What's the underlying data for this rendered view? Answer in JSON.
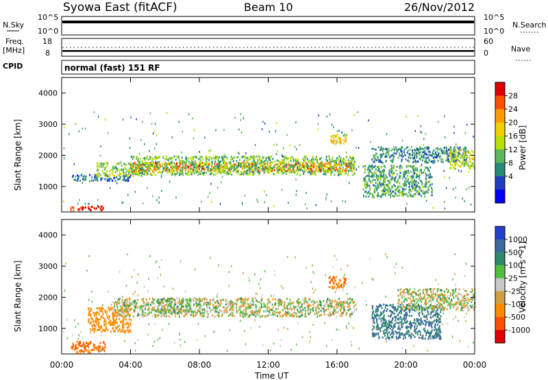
{
  "header": {
    "station": "Syowa East (fitACF)",
    "beam": "Beam 10",
    "date": "26/Nov/2012"
  },
  "summary_panels": {
    "nsky": {
      "left_label": "N.Sky",
      "right_label": "N.Search",
      "left_ticks": [
        "10^5",
        "10^0"
      ],
      "right_ticks": [
        "10^5",
        "10^0"
      ]
    },
    "freq": {
      "left_label_top": "Freq.",
      "left_label_bottom": "[MHz]",
      "right_label": "Nave",
      "left_ticks": [
        "18",
        "8"
      ],
      "right_ticks": [
        "60",
        "0"
      ]
    },
    "cpid": {
      "label": "CPID",
      "text": "normal (fast) 151 RF"
    }
  },
  "x_axis": {
    "label": "Time UT",
    "ticks": [
      "00:00",
      "04:00",
      "08:00",
      "12:00",
      "16:00",
      "20:00",
      "00:00"
    ]
  },
  "power_colorbar": {
    "label": "Power [dB]",
    "ticks": [
      "28",
      "24",
      "20",
      "16",
      "12",
      "8",
      "4"
    ],
    "colors": [
      "#e00000",
      "#ff5000",
      "#ff9a00",
      "#f0d000",
      "#b8e000",
      "#5cb85c",
      "#2a8a7a",
      "#2040c0",
      "#0000ff"
    ]
  },
  "velocity_colorbar": {
    "label": "Velocity [m s^-1]",
    "ticks": [
      "1000",
      "500",
      "100",
      "25",
      "-25",
      "-100",
      "-500",
      "-1000"
    ],
    "colors": [
      "#2040d0",
      "#3a6aa0",
      "#2e8a6a",
      "#50c040",
      "#c8c8c8",
      "#d0a040",
      "#ff8a00",
      "#ff5000",
      "#e00000"
    ]
  },
  "chart_data": [
    {
      "type": "heatmap",
      "title": "Power",
      "xlabel": "Time UT",
      "ylabel": "Slant Range [km]",
      "xlim": [
        0,
        24
      ],
      "ylim": [
        180,
        4500
      ],
      "y_ticks": [
        1000,
        2000,
        3000,
        4000
      ],
      "colorbar": "Power [dB]",
      "colorbar_range": [
        0,
        30
      ],
      "bands": [
        {
          "t_start": 0.5,
          "t_end": 2.5,
          "r_min": 250,
          "r_max": 400,
          "value": 28
        },
        {
          "t_start": 0.5,
          "t_end": 4.0,
          "r_min": 1200,
          "r_max": 1400,
          "value": 6
        },
        {
          "t_start": 2.0,
          "t_end": 5.0,
          "r_min": 1350,
          "r_max": 1800,
          "value": 14
        },
        {
          "t_start": 4.0,
          "t_end": 17.0,
          "r_min": 1500,
          "r_max": 1800,
          "value": 24
        },
        {
          "t_start": 4.0,
          "t_end": 17.0,
          "r_min": 1400,
          "r_max": 2000,
          "value": 12
        },
        {
          "t_start": 15.5,
          "t_end": 16.5,
          "r_min": 2400,
          "r_max": 2700,
          "value": 20
        },
        {
          "t_start": 17.5,
          "t_end": 21.5,
          "r_min": 700,
          "r_max": 1700,
          "value": 10
        },
        {
          "t_start": 18.0,
          "t_end": 23.5,
          "r_min": 1800,
          "r_max": 2300,
          "value": 8
        },
        {
          "t_start": 22.5,
          "t_end": 24.0,
          "r_min": 1600,
          "r_max": 2200,
          "value": 16
        }
      ]
    },
    {
      "type": "heatmap",
      "title": "Velocity",
      "xlabel": "Time UT",
      "ylabel": "Slant Range [km]",
      "xlim": [
        0,
        24
      ],
      "ylim": [
        180,
        4500
      ],
      "y_ticks": [
        1000,
        2000,
        3000,
        4000
      ],
      "colorbar": "Velocity [m s^-1]",
      "bands": [
        {
          "t_start": 0.5,
          "t_end": 2.5,
          "r_min": 250,
          "r_max": 600,
          "value": -500
        },
        {
          "t_start": 1.5,
          "t_end": 4.0,
          "r_min": 900,
          "r_max": 1700,
          "value": -300
        },
        {
          "t_start": 3.0,
          "t_end": 17.0,
          "r_min": 1400,
          "r_max": 2000,
          "value": 0
        },
        {
          "t_start": 5.5,
          "t_end": 7.5,
          "r_min": 1500,
          "r_max": 2000,
          "value": 50
        },
        {
          "t_start": 15.5,
          "t_end": 16.5,
          "r_min": 2300,
          "r_max": 2700,
          "value": -500
        },
        {
          "t_start": 18.0,
          "t_end": 22.0,
          "r_min": 700,
          "r_max": 1800,
          "value": 500
        },
        {
          "t_start": 19.5,
          "t_end": 24.0,
          "r_min": 1600,
          "r_max": 2300,
          "value": 0
        }
      ]
    }
  ]
}
